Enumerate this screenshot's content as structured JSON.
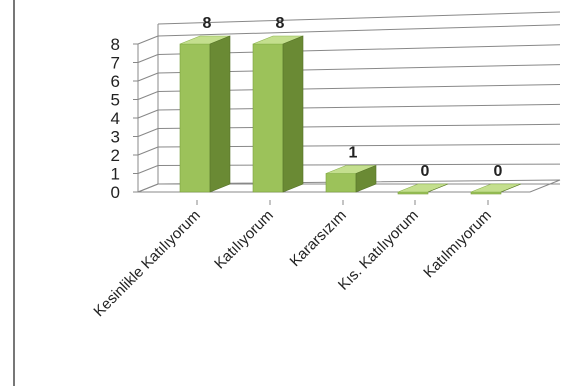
{
  "chart_data": {
    "type": "bar",
    "style": "3d-column",
    "categories": [
      "Kesinlikle Katılıyorum",
      "Katılıyorum",
      "Kararsızım",
      "Kıs. Katılıyorum",
      "Katılmıyorum"
    ],
    "values": [
      8,
      8,
      1,
      0,
      0
    ],
    "data_labels": [
      "8",
      "8",
      "1",
      "0",
      "0"
    ],
    "title": "",
    "xlabel": "",
    "ylabel": "",
    "ylim": [
      0,
      8
    ],
    "y_ticks": [
      0,
      1,
      2,
      3,
      4,
      5,
      6,
      7,
      8
    ],
    "grid": true,
    "legend": "none",
    "colors": {
      "bar_front": "#9cc25a",
      "bar_top": "#c4df8e",
      "bar_side": "#6a8a34",
      "grid": "#888888",
      "text": "#222222"
    }
  }
}
